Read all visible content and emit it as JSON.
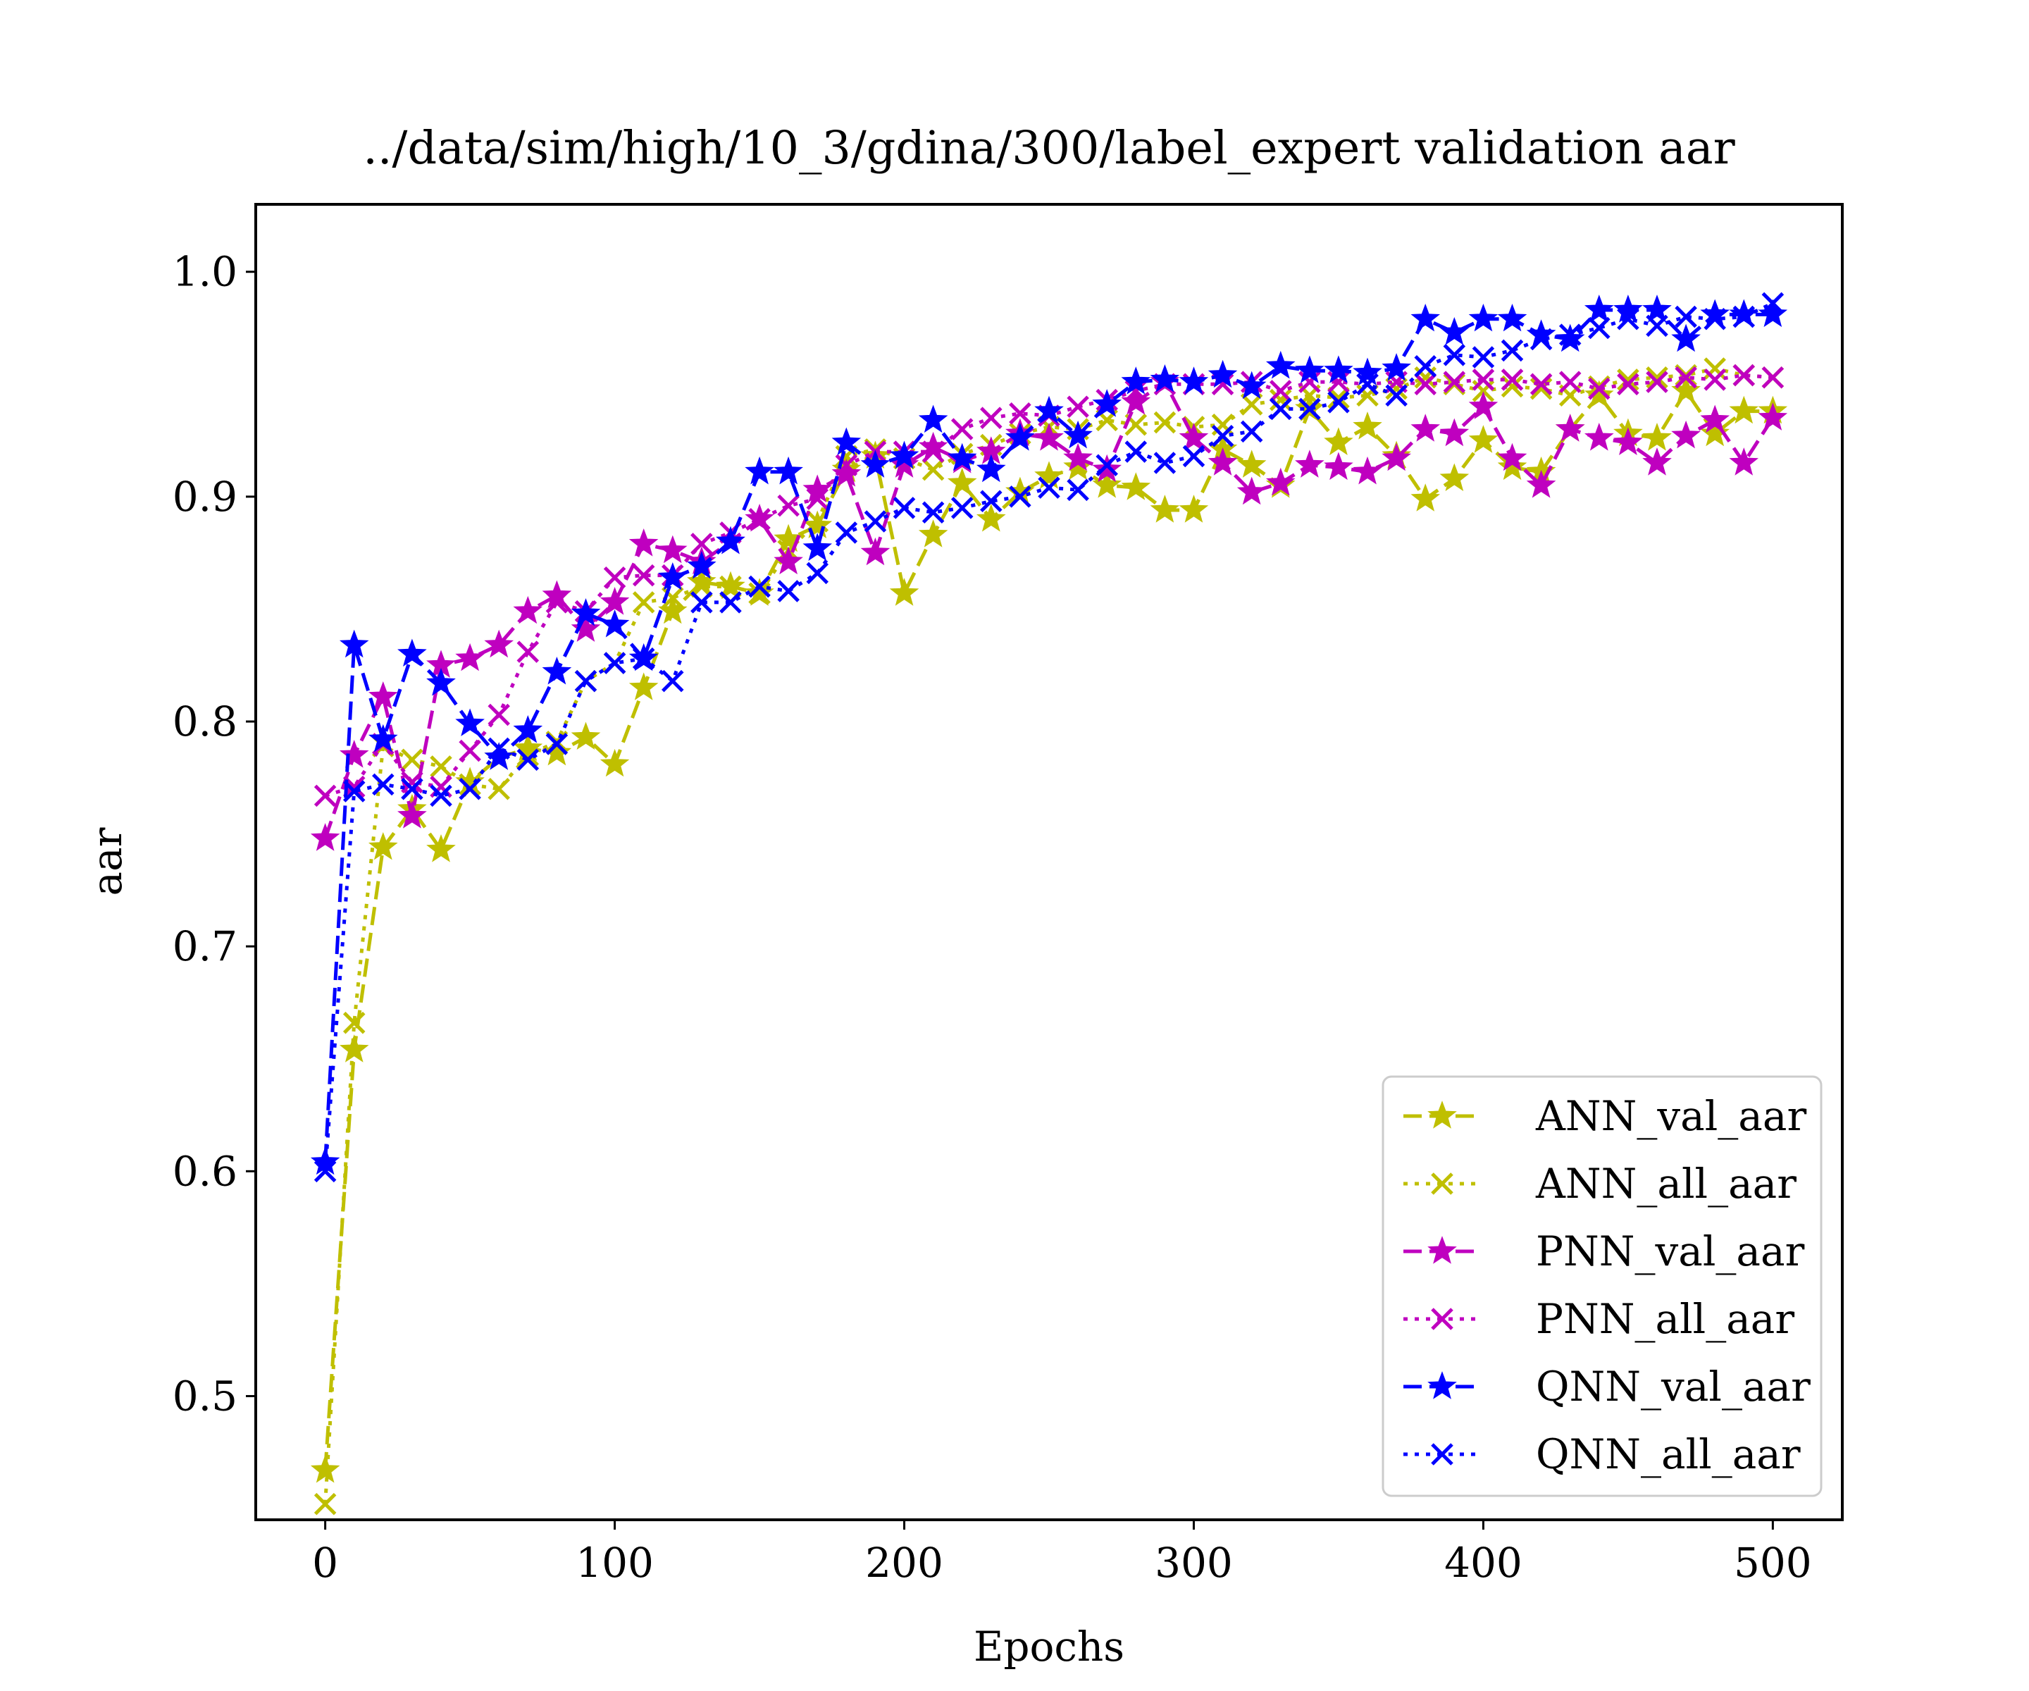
{
  "chart_data": {
    "type": "line",
    "title": "../data/sim/high/10_3/gdina/300/label_expert validation aar",
    "xlabel": "Epochs",
    "ylabel": "aar",
    "xlim": [
      -24,
      524
    ],
    "ylim": [
      0.445,
      1.03
    ],
    "xticks": [
      "0",
      "100",
      "200",
      "300",
      "400",
      "500"
    ],
    "yticks": [
      "0.5",
      "0.6",
      "0.7",
      "0.8",
      "0.9",
      "1.0"
    ],
    "grid": false,
    "legend_position": "lower-right",
    "x": [
      0,
      10,
      20,
      30,
      40,
      50,
      60,
      70,
      80,
      90,
      100,
      110,
      120,
      130,
      140,
      150,
      160,
      170,
      180,
      190,
      200,
      210,
      220,
      230,
      240,
      250,
      260,
      270,
      280,
      290,
      300,
      310,
      320,
      330,
      340,
      350,
      360,
      370,
      380,
      390,
      400,
      410,
      420,
      430,
      440,
      450,
      460,
      470,
      480,
      490,
      500
    ],
    "series": [
      {
        "name": "ANN_val_aar",
        "color": "#bfbf00",
        "dash": "dashed",
        "marker": "star",
        "values": [
          0.467,
          0.654,
          0.744,
          0.761,
          0.743,
          0.773,
          0.784,
          0.788,
          0.786,
          0.793,
          0.781,
          0.815,
          0.849,
          0.862,
          0.86,
          0.857,
          0.881,
          0.887,
          0.912,
          0.918,
          0.857,
          0.883,
          0.906,
          0.89,
          0.902,
          0.909,
          0.913,
          0.905,
          0.904,
          0.894,
          0.894,
          0.921,
          0.914,
          0.905,
          0.939,
          0.924,
          0.931,
          0.918,
          0.899,
          0.908,
          0.925,
          0.913,
          0.911,
          0.93,
          0.945,
          0.928,
          0.926,
          0.947,
          0.928,
          0.938,
          0.938
        ]
      },
      {
        "name": "ANN_all_aar",
        "color": "#bfbf00",
        "dash": "dotted",
        "marker": "x",
        "values": [
          0.452,
          0.666,
          0.789,
          0.783,
          0.78,
          0.772,
          0.77,
          0.785,
          0.791,
          0.818,
          0.826,
          0.853,
          0.855,
          0.86,
          0.86,
          0.857,
          0.876,
          0.889,
          0.918,
          0.921,
          0.917,
          0.912,
          0.919,
          0.923,
          0.928,
          0.931,
          0.93,
          0.934,
          0.932,
          0.933,
          0.931,
          0.932,
          0.941,
          0.943,
          0.945,
          0.944,
          0.945,
          0.948,
          0.953,
          0.95,
          0.947,
          0.949,
          0.948,
          0.945,
          0.949,
          0.952,
          0.953,
          0.954,
          0.957,
          0.954,
          0.953
        ]
      },
      {
        "name": "PNN_val_aar",
        "color": "#bf00bf",
        "dash": "dashed",
        "marker": "star",
        "values": [
          0.748,
          0.785,
          0.811,
          0.758,
          0.825,
          0.828,
          0.834,
          0.849,
          0.856,
          0.841,
          0.853,
          0.879,
          0.876,
          0.871,
          0.88,
          0.89,
          0.871,
          0.903,
          0.91,
          0.875,
          0.914,
          0.922,
          0.916,
          0.92,
          0.928,
          0.926,
          0.917,
          0.912,
          0.942,
          0.951,
          0.926,
          0.915,
          0.902,
          0.906,
          0.914,
          0.913,
          0.911,
          0.917,
          0.93,
          0.928,
          0.94,
          0.917,
          0.905,
          0.93,
          0.926,
          0.924,
          0.915,
          0.927,
          0.934,
          0.915,
          0.935
        ]
      },
      {
        "name": "PNN_all_aar",
        "color": "#bf00bf",
        "dash": "dotted",
        "marker": "x",
        "values": [
          0.767,
          0.771,
          0.79,
          0.773,
          0.771,
          0.787,
          0.803,
          0.831,
          0.853,
          0.849,
          0.864,
          0.865,
          0.865,
          0.879,
          0.884,
          0.89,
          0.896,
          0.899,
          0.914,
          0.92,
          0.92,
          0.92,
          0.93,
          0.935,
          0.937,
          0.936,
          0.94,
          0.943,
          0.947,
          0.95,
          0.95,
          0.95,
          0.951,
          0.947,
          0.951,
          0.951,
          0.95,
          0.951,
          0.95,
          0.951,
          0.952,
          0.952,
          0.95,
          0.951,
          0.948,
          0.95,
          0.951,
          0.953,
          0.952,
          0.954,
          0.953
        ]
      },
      {
        "name": "QNN_val_aar",
        "color": "#0000ff",
        "dash": "dashed",
        "marker": "star",
        "values": [
          0.604,
          0.834,
          0.792,
          0.83,
          0.817,
          0.799,
          0.784,
          0.796,
          0.822,
          0.848,
          0.843,
          0.828,
          0.864,
          0.869,
          0.88,
          0.911,
          0.911,
          0.877,
          0.924,
          0.914,
          0.918,
          0.934,
          0.917,
          0.912,
          0.926,
          0.938,
          0.927,
          0.941,
          0.951,
          0.952,
          0.951,
          0.954,
          0.949,
          0.958,
          0.956,
          0.956,
          0.955,
          0.957,
          0.979,
          0.973,
          0.979,
          0.979,
          0.972,
          0.97,
          0.983,
          0.983,
          0.983,
          0.97,
          0.981,
          0.981,
          0.981
        ]
      },
      {
        "name": "QNN_all_aar",
        "color": "#0000ff",
        "dash": "dotted",
        "marker": "x",
        "values": [
          0.6,
          0.769,
          0.772,
          0.77,
          0.767,
          0.77,
          0.788,
          0.783,
          0.79,
          0.818,
          0.826,
          0.828,
          0.818,
          0.853,
          0.853,
          0.86,
          0.858,
          0.866,
          0.884,
          0.889,
          0.895,
          0.893,
          0.895,
          0.898,
          0.9,
          0.904,
          0.903,
          0.914,
          0.92,
          0.915,
          0.918,
          0.927,
          0.929,
          0.939,
          0.939,
          0.942,
          0.95,
          0.945,
          0.958,
          0.963,
          0.962,
          0.965,
          0.97,
          0.972,
          0.975,
          0.979,
          0.976,
          0.98,
          0.979,
          0.98,
          0.986
        ]
      }
    ]
  }
}
